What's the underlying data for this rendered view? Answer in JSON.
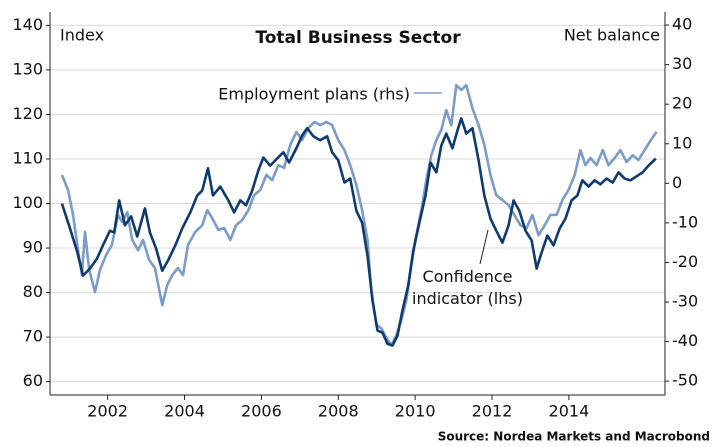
{
  "chart_data": {
    "type": "line",
    "title": "Total Business Sector",
    "ylabel": "Index",
    "y2label": "Net balance",
    "source": "Source: Nordea Markets and Macrobond",
    "xlim": [
      2000.5,
      2016.5
    ],
    "xticks": [
      2002,
      2004,
      2006,
      2008,
      2010,
      2012,
      2014
    ],
    "ylim": [
      57,
      143
    ],
    "yticks": [
      60,
      70,
      80,
      90,
      100,
      110,
      120,
      130,
      140
    ],
    "y2lim": [
      -53.5,
      43.3
    ],
    "y2ticks": [
      -50,
      -40,
      -30,
      -20,
      -10,
      0,
      10,
      20,
      30,
      40
    ],
    "grid": true,
    "series": [
      {
        "name": "Employment plans (rhs)",
        "color": "#7b9cc7",
        "axis": "y2",
        "x": [
          2000.81,
          2000.97,
          2001.1,
          2001.23,
          2001.33,
          2001.41,
          2001.52,
          2001.67,
          2001.8,
          2001.96,
          2002.11,
          2002.27,
          2002.38,
          2002.51,
          2002.64,
          2002.79,
          2002.92,
          2003.08,
          2003.23,
          2003.42,
          2003.55,
          2003.68,
          2003.83,
          2003.96,
          2004.09,
          2004.28,
          2004.46,
          2004.59,
          2004.72,
          2004.88,
          2005.03,
          2005.19,
          2005.34,
          2005.5,
          2005.66,
          2005.81,
          2005.97,
          2006.13,
          2006.28,
          2006.44,
          2006.59,
          2006.75,
          2006.91,
          2007.06,
          2007.22,
          2007.38,
          2007.53,
          2007.69,
          2007.84,
          2008.0,
          2008.16,
          2008.31,
          2008.47,
          2008.62,
          2008.76,
          2008.86,
          2008.99,
          2009.12,
          2009.25,
          2009.38,
          2009.51,
          2009.64,
          2009.77,
          2009.9,
          2010.03,
          2010.16,
          2010.29,
          2010.42,
          2010.55,
          2010.68,
          2010.81,
          2010.94,
          2011.07,
          2011.2,
          2011.33,
          2011.49,
          2011.65,
          2011.8,
          2011.96,
          2012.11,
          2012.27,
          2012.43,
          2012.58,
          2012.74,
          2012.9,
          2013.05,
          2013.21,
          2013.37,
          2013.52,
          2013.68,
          2013.83,
          2013.99,
          2014.15,
          2014.3,
          2014.43,
          2014.56,
          2014.72,
          2014.88,
          2015.03,
          2015.19,
          2015.34,
          2015.5,
          2015.66,
          2015.81,
          2015.97,
          2016.13,
          2016.28
        ],
        "values": [
          2.1,
          -1.7,
          -8.0,
          -16.9,
          -23.2,
          -12.3,
          -21.9,
          -27.5,
          -21.9,
          -18.1,
          -15.6,
          -8.0,
          -9.8,
          -7.3,
          -14.3,
          -16.9,
          -14.3,
          -19.4,
          -21.4,
          -30.8,
          -25.7,
          -23.2,
          -21.4,
          -23.2,
          -15.6,
          -12.3,
          -10.6,
          -6.8,
          -8.8,
          -11.8,
          -11.3,
          -14.3,
          -10.6,
          -9.3,
          -6.8,
          -3.0,
          -1.7,
          2.1,
          0.8,
          4.6,
          3.9,
          9.7,
          13.0,
          10.9,
          14.0,
          15.5,
          14.7,
          15.5,
          14.7,
          10.9,
          8.4,
          4.6,
          -0.4,
          -6.8,
          -14.3,
          -27.0,
          -35.8,
          -36.6,
          -39.1,
          -40.9,
          -38.4,
          -34.6,
          -29.5,
          -20.7,
          -13.1,
          -6.8,
          0.8,
          7.1,
          10.9,
          13.5,
          18.5,
          14.7,
          24.8,
          23.6,
          24.8,
          19.0,
          14.7,
          9.7,
          2.1,
          -3.0,
          -4.2,
          -5.5,
          -8.0,
          -10.6,
          -11.3,
          -8.0,
          -13.1,
          -10.6,
          -8.0,
          -8.0,
          -4.2,
          -1.7,
          2.1,
          8.4,
          4.6,
          6.4,
          4.6,
          8.4,
          4.6,
          6.4,
          8.4,
          5.4,
          7.1,
          5.9,
          8.4,
          10.9,
          13.0
        ]
      },
      {
        "name": "Confidence indicator (lhs)",
        "color": "#103a6e",
        "axis": "y",
        "x": [
          2000.81,
          2001.02,
          2001.2,
          2001.36,
          2001.54,
          2001.72,
          2001.91,
          2002.06,
          2002.17,
          2002.3,
          2002.45,
          2002.61,
          2002.77,
          2002.97,
          2003.1,
          2003.26,
          2003.42,
          2003.57,
          2003.76,
          2003.94,
          2004.15,
          2004.33,
          2004.46,
          2004.61,
          2004.74,
          2004.93,
          2005.14,
          2005.29,
          2005.45,
          2005.6,
          2005.76,
          2005.92,
          2006.05,
          2006.23,
          2006.41,
          2006.57,
          2006.72,
          2006.91,
          2007.06,
          2007.19,
          2007.35,
          2007.53,
          2007.71,
          2007.84,
          2008.0,
          2008.16,
          2008.31,
          2008.47,
          2008.62,
          2008.76,
          2008.89,
          2009.02,
          2009.15,
          2009.28,
          2009.41,
          2009.54,
          2009.67,
          2009.82,
          2009.95,
          2010.11,
          2010.27,
          2010.4,
          2010.55,
          2010.68,
          2010.81,
          2010.97,
          2011.1,
          2011.2,
          2011.33,
          2011.49,
          2011.65,
          2011.8,
          2011.96,
          2012.11,
          2012.27,
          2012.43,
          2012.56,
          2012.71,
          2012.87,
          2013.03,
          2013.16,
          2013.29,
          2013.44,
          2013.6,
          2013.76,
          2013.91,
          2014.07,
          2014.22,
          2014.35,
          2014.51,
          2014.67,
          2014.82,
          2014.98,
          2015.14,
          2015.29,
          2015.45,
          2015.6,
          2015.76,
          2015.92,
          2016.07,
          2016.26
        ],
        "values": [
          100.0,
          94.4,
          89.4,
          83.8,
          85.4,
          87.6,
          91.2,
          93.9,
          93.5,
          100.7,
          95.1,
          97.1,
          92.6,
          98.9,
          93.5,
          89.9,
          84.9,
          87.2,
          90.6,
          94.4,
          98.0,
          101.8,
          102.9,
          107.9,
          101.8,
          103.8,
          100.7,
          98.0,
          100.7,
          99.6,
          102.9,
          107.4,
          110.3,
          108.5,
          110.1,
          111.5,
          109.2,
          112.4,
          115.3,
          116.9,
          115.1,
          114.2,
          115.1,
          111.5,
          109.7,
          104.7,
          105.6,
          98.4,
          95.7,
          88.3,
          78.2,
          71.5,
          71.0,
          68.5,
          68.1,
          70.3,
          76.0,
          81.6,
          89.4,
          95.7,
          101.8,
          109.2,
          107.0,
          113.0,
          115.7,
          112.4,
          116.4,
          119.1,
          115.7,
          116.9,
          109.7,
          101.8,
          96.6,
          93.9,
          91.2,
          95.1,
          100.7,
          98.4,
          93.9,
          91.7,
          85.4,
          89.0,
          92.8,
          90.6,
          94.4,
          96.6,
          100.7,
          101.8,
          105.2,
          103.8,
          105.2,
          104.3,
          105.6,
          104.7,
          107.0,
          105.6,
          105.2,
          106.1,
          107.0,
          108.5,
          110.1
        ]
      }
    ]
  }
}
